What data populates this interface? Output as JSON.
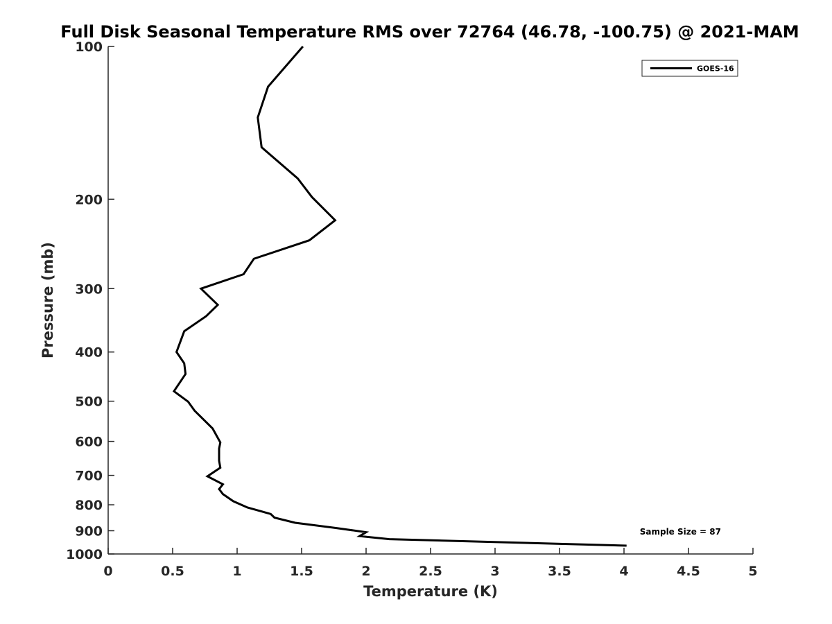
{
  "chart_data": {
    "type": "line",
    "title": "Full Disk Seasonal Temperature RMS over 72764 (46.78, -100.75) @ 2021-MAM",
    "xlabel": "Temperature (K)",
    "ylabel": "Pressure (mb)",
    "xlim": [
      0,
      5
    ],
    "ylim": [
      100,
      1000
    ],
    "y_scale": "log",
    "y_reversed": true,
    "grid": false,
    "legend_position": "top-right",
    "x_ticks": [
      0,
      0.5,
      1,
      1.5,
      2,
      2.5,
      3,
      3.5,
      4,
      4.5,
      5
    ],
    "x_tick_labels": [
      "0",
      "0.5",
      "1",
      "1.5",
      "2",
      "2.5",
      "3",
      "3.5",
      "4",
      "4.5",
      "5"
    ],
    "y_ticks": [
      100,
      200,
      300,
      400,
      500,
      600,
      700,
      800,
      900,
      1000
    ],
    "y_tick_labels": [
      "100",
      "200",
      "300",
      "400",
      "500",
      "600",
      "700",
      "800",
      "900",
      "1000"
    ],
    "series": [
      {
        "name": "GOES-16",
        "color": "#000000",
        "x": [
          1.51,
          1.24,
          1.16,
          1.19,
          1.47,
          1.58,
          1.76,
          1.56,
          1.13,
          1.05,
          0.72,
          0.85,
          0.76,
          0.59,
          0.53,
          0.59,
          0.6,
          0.51,
          0.62,
          0.67,
          0.81,
          0.87,
          0.86,
          0.86,
          0.87,
          0.77,
          0.89,
          0.86,
          0.89,
          0.97,
          1.08,
          1.26,
          1.29,
          1.45,
          1.77,
          2.0,
          1.95,
          2.18,
          4.02
        ],
        "y": [
          100,
          120,
          138,
          158,
          182,
          198,
          220,
          241,
          262,
          281,
          300,
          323,
          340,
          364,
          400,
          421,
          442,
          478,
          501,
          522,
          566,
          603,
          620,
          655,
          676,
          703,
          729,
          745,
          762,
          787,
          810,
          834,
          848,
          868,
          889,
          906,
          922,
          935,
          963
        ]
      }
    ],
    "annotations": [
      {
        "text": "Sample Size = 87",
        "position": "bottom-right"
      }
    ]
  }
}
